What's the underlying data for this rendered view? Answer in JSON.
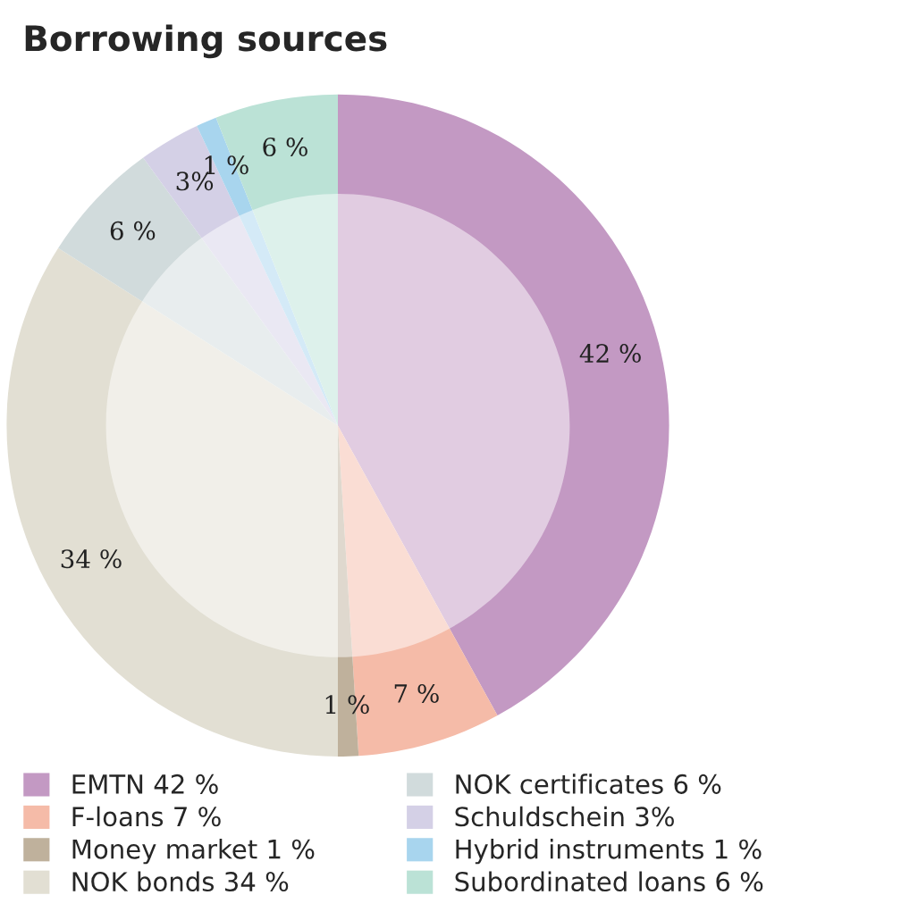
{
  "chart_data": {
    "type": "donut",
    "title": "Borrowing sources",
    "categories": [
      "EMTN 42 %",
      "F-loans 7 %",
      "Money market 1 %",
      "NOK bonds 34 %",
      "NOK certificates 6 %",
      "Schuldschein 3%",
      "Hybrid instruments 1 %",
      "Subordinated loans 6 %"
    ],
    "values": [
      42,
      7,
      1,
      34,
      6,
      3,
      1,
      6
    ],
    "value_labels": [
      "42 %",
      "7 %",
      "1 %",
      "34 %",
      "6 %",
      "3%",
      "1 %",
      "6 %"
    ],
    "colors": [
      "#c399c3",
      "#f5bba8",
      "#bfb19c",
      "#e2dfd3",
      "#d1dbdc",
      "#d4d0e6",
      "#a8d5ee",
      "#bbe2d6"
    ],
    "legend": "bottom"
  }
}
